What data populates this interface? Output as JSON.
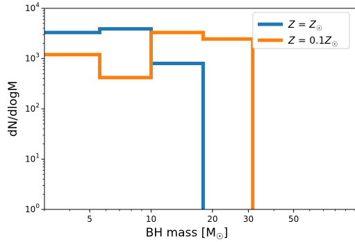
{
  "chart_data": {
    "type": "line",
    "drawstyle": "steps-post",
    "title": "",
    "xlabel": "BH mass [M",
    "xlabel_sub": "☉",
    "xlabel_close": "]",
    "ylabel": "dN/dlogM",
    "xscale": "log",
    "yscale": "log",
    "xlim": [
      3.0,
      100.0
    ],
    "ylim": [
      1,
      10000
    ],
    "x_ticks": [
      {
        "value": 5,
        "label": "5"
      },
      {
        "value": 10,
        "label": "10"
      },
      {
        "value": 20,
        "label": "20"
      },
      {
        "value": 30,
        "label": "30"
      },
      {
        "value": 50,
        "label": "50"
      }
    ],
    "y_ticks": [
      {
        "value": 1,
        "base": "10",
        "exp": "0"
      },
      {
        "value": 10,
        "base": "10",
        "exp": "1"
      },
      {
        "value": 100,
        "base": "10",
        "exp": "2"
      },
      {
        "value": 1000,
        "base": "10",
        "exp": "3"
      },
      {
        "value": 10000,
        "base": "10",
        "exp": "4"
      }
    ],
    "legend_position": "top-right",
    "series": [
      {
        "name": "Z = Z☉",
        "legend": {
          "italic": "Z",
          "eq": " = ",
          "italic2": "Z",
          "sub": "☉"
        },
        "color": "#1f77b4",
        "x": [
          3.0,
          5.6,
          10.0,
          18.0,
          18.0
        ],
        "y": [
          3300,
          3900,
          800,
          800,
          1
        ]
      },
      {
        "name": "Z = 0.1Z☉",
        "legend": {
          "italic": "Z",
          "eq": " = 0.1",
          "italic2": "Z",
          "sub": "☉"
        },
        "color": "#ff7f0e",
        "x": [
          3.0,
          5.6,
          10.0,
          18.0,
          31.5,
          31.5
        ],
        "y": [
          1200,
          420,
          3300,
          2450,
          2450,
          1
        ]
      }
    ]
  }
}
